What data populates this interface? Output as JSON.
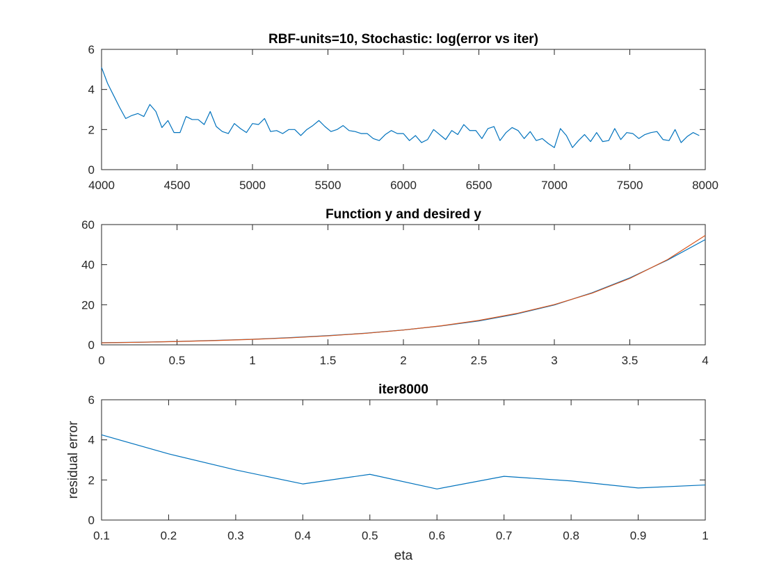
{
  "chart_data": [
    {
      "type": "line",
      "title": "RBF-units=10, Stochastic: log(error vs iter)",
      "xlabel": "",
      "ylabel": "",
      "xlim": [
        4000,
        8000
      ],
      "ylim": [
        0,
        6
      ],
      "xticks": [
        4000,
        4500,
        5000,
        5500,
        6000,
        6500,
        7000,
        7500,
        8000
      ],
      "yticks": [
        0,
        2,
        4,
        6
      ],
      "grid": false,
      "series": [
        {
          "color": "#0072BD",
          "x": [
            4000,
            4040,
            4080,
            4120,
            4160,
            4200,
            4240,
            4280,
            4320,
            4360,
            4400,
            4440,
            4480,
            4520,
            4560,
            4600,
            4640,
            4680,
            4720,
            4760,
            4800,
            4840,
            4880,
            4920,
            4960,
            5000,
            5040,
            5080,
            5120,
            5160,
            5200,
            5240,
            5280,
            5320,
            5360,
            5400,
            5440,
            5480,
            5520,
            5560,
            5600,
            5640,
            5680,
            5720,
            5760,
            5800,
            5840,
            5880,
            5920,
            5960,
            6000,
            6040,
            6080,
            6120,
            6160,
            6200,
            6240,
            6280,
            6320,
            6360,
            6400,
            6440,
            6480,
            6520,
            6560,
            6600,
            6640,
            6680,
            6720,
            6760,
            6800,
            6840,
            6880,
            6920,
            6960,
            7000,
            7040,
            7080,
            7120,
            7160,
            7200,
            7240,
            7280,
            7320,
            7360,
            7400,
            7440,
            7480,
            7520,
            7560,
            7600,
            7640,
            7680,
            7720,
            7760,
            7800,
            7840,
            7880,
            7920,
            7960
          ],
          "y": [
            5.1,
            4.3,
            3.7,
            3.1,
            2.55,
            2.7,
            2.8,
            2.65,
            3.25,
            2.9,
            2.1,
            2.45,
            1.85,
            1.85,
            2.65,
            2.5,
            2.5,
            2.25,
            2.9,
            2.15,
            1.9,
            1.8,
            2.3,
            2.05,
            1.85,
            2.3,
            2.25,
            2.55,
            1.9,
            1.95,
            1.8,
            2.0,
            2.0,
            1.7,
            2.0,
            2.2,
            2.45,
            2.15,
            1.9,
            2.0,
            2.2,
            1.95,
            1.9,
            1.8,
            1.8,
            1.55,
            1.45,
            1.75,
            1.95,
            1.8,
            1.8,
            1.45,
            1.7,
            1.35,
            1.5,
            2.0,
            1.75,
            1.5,
            1.95,
            1.75,
            2.25,
            1.95,
            1.95,
            1.55,
            2.05,
            2.15,
            1.45,
            1.85,
            2.1,
            1.95,
            1.55,
            1.9,
            1.45,
            1.55,
            1.3,
            1.1,
            2.05,
            1.7,
            1.1,
            1.45,
            1.75,
            1.4,
            1.85,
            1.4,
            1.45,
            2.05,
            1.5,
            1.85,
            1.8,
            1.55,
            1.75,
            1.85,
            1.9,
            1.5,
            1.45,
            2.0,
            1.35,
            1.65,
            1.85,
            1.7
          ]
        }
      ]
    },
    {
      "type": "line",
      "title": "Function y and desired y",
      "xlabel": "",
      "ylabel": "",
      "xlim": [
        0,
        4
      ],
      "ylim": [
        0,
        60
      ],
      "xticks": [
        0,
        0.5,
        1,
        1.5,
        2,
        2.5,
        3,
        3.5,
        4
      ],
      "yticks": [
        0,
        20,
        40,
        60
      ],
      "grid": false,
      "series": [
        {
          "color": "#0072BD",
          "x": [
            0,
            0.25,
            0.5,
            0.75,
            1,
            1.25,
            1.5,
            1.75,
            2,
            2.25,
            2.5,
            2.75,
            3,
            3.25,
            3.5,
            3.75,
            4
          ],
          "y": [
            1.1,
            1.3,
            1.7,
            2.2,
            2.8,
            3.6,
            4.6,
            5.8,
            7.4,
            9.4,
            11.9,
            15.4,
            19.9,
            26.0,
            33.4,
            42.3,
            52.5
          ]
        },
        {
          "color": "#D95319",
          "x": [
            0,
            0.25,
            0.5,
            0.75,
            1,
            1.25,
            1.5,
            1.75,
            2,
            2.25,
            2.5,
            2.75,
            3,
            3.25,
            3.5,
            3.75,
            4
          ],
          "y": [
            1.0,
            1.28,
            1.65,
            2.12,
            2.72,
            3.49,
            4.48,
            5.75,
            7.39,
            9.49,
            12.18,
            15.64,
            20.09,
            25.79,
            33.12,
            42.52,
            54.6
          ]
        }
      ]
    },
    {
      "type": "line",
      "title": "iter8000",
      "xlabel": "eta",
      "ylabel": "residual error",
      "xlim": [
        0.1,
        1
      ],
      "ylim": [
        0,
        6
      ],
      "xticks": [
        0.1,
        0.2,
        0.3,
        0.4,
        0.5,
        0.6,
        0.7,
        0.8,
        0.9,
        1
      ],
      "yticks": [
        0,
        2,
        4,
        6
      ],
      "grid": false,
      "series": [
        {
          "color": "#0072BD",
          "x": [
            0.1,
            0.2,
            0.3,
            0.4,
            0.5,
            0.6,
            0.7,
            0.8,
            0.9,
            1.0
          ],
          "y": [
            4.25,
            3.3,
            2.5,
            1.8,
            2.28,
            1.55,
            2.18,
            1.95,
            1.6,
            1.75
          ]
        }
      ]
    }
  ]
}
